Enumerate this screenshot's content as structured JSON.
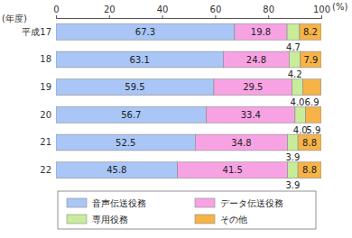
{
  "chart_data": {
    "type": "bar",
    "orientation": "horizontal",
    "stacked": true,
    "data_labels": true,
    "xlabel": "(%)",
    "ylabel": "(年度)",
    "categories": [
      "平成17",
      "18",
      "19",
      "20",
      "21",
      "22"
    ],
    "series": [
      {
        "name": "音声伝送役務",
        "color": "#a9c6f7",
        "values": [
          67.3,
          63.1,
          59.5,
          56.7,
          52.5,
          45.8
        ],
        "value_labels": [
          "67.3",
          "63.1",
          "59.5",
          "56.7",
          "52.5",
          "45.8"
        ]
      },
      {
        "name": "データ伝送役務",
        "color": "#f7a3e3",
        "values": [
          19.8,
          24.8,
          29.5,
          33.4,
          34.8,
          41.5
        ],
        "value_labels": [
          "19.8",
          "24.8",
          "29.5",
          "33.4",
          "34.8",
          "41.5"
        ]
      },
      {
        "name": "専用役務",
        "color": "#c8ec9a",
        "values": [
          4.7,
          4.2,
          4.0,
          4.0,
          3.9,
          3.9
        ],
        "value_labels": [
          "4.7",
          "4.2",
          "4.0",
          "4.0",
          "3.9",
          "3.9"
        ]
      },
      {
        "name": "その他",
        "color": "#f6b347",
        "values": [
          8.2,
          7.9,
          6.9,
          5.9,
          8.8,
          8.8
        ],
        "value_labels": [
          "8.2",
          "7.9",
          "6.9",
          "5.9",
          "8.8",
          "8.8"
        ]
      }
    ],
    "xlim": [
      0,
      100
    ],
    "xticks": [
      0,
      20,
      40,
      60,
      80,
      100
    ],
    "grid": false,
    "legend": "bottom"
  }
}
